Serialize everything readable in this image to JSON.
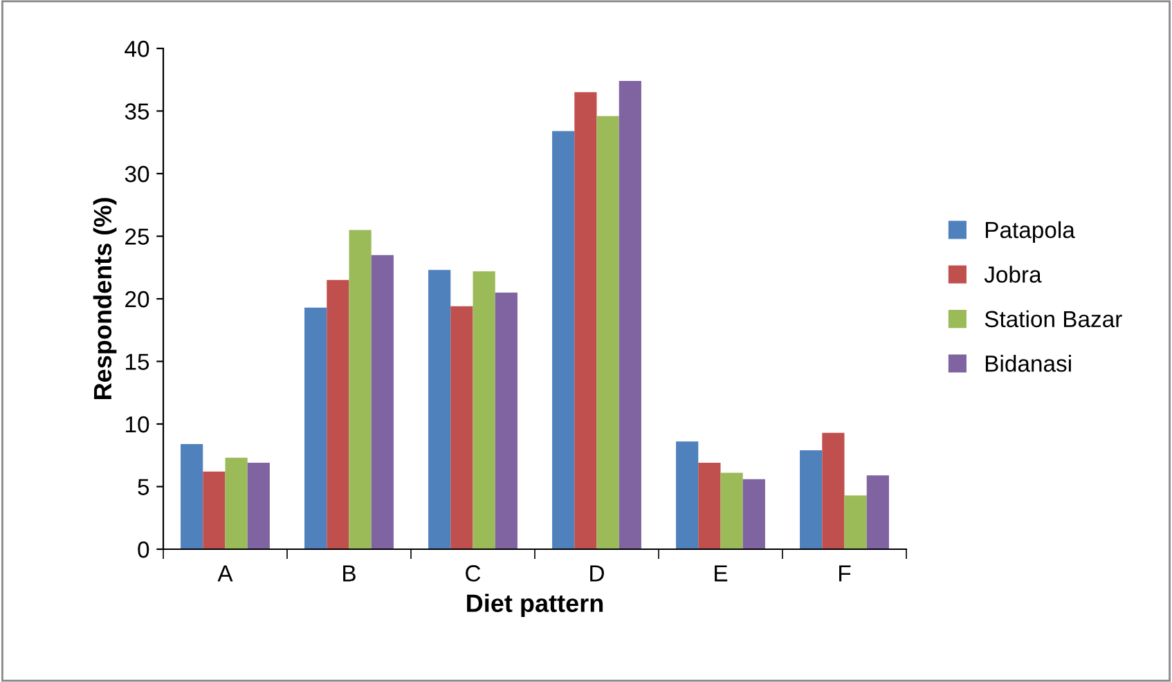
{
  "chart_data": {
    "type": "bar",
    "xlabel": "Diet pattern",
    "ylabel": "Respondents (%)",
    "categories": [
      "A",
      "B",
      "C",
      "D",
      "E",
      "F"
    ],
    "series": [
      {
        "name": "Patapola",
        "color": "#4f81bd",
        "values": [
          8.4,
          19.3,
          22.3,
          33.4,
          8.6,
          7.9
        ]
      },
      {
        "name": "Jobra",
        "color": "#c0504d",
        "values": [
          6.2,
          21.5,
          19.4,
          36.5,
          6.9,
          9.3
        ]
      },
      {
        "name": "Station Bazar",
        "color": "#9bbb59",
        "values": [
          7.3,
          25.5,
          22.2,
          34.6,
          6.1,
          4.3
        ]
      },
      {
        "name": "Bidanasi",
        "color": "#8064a2",
        "values": [
          6.9,
          23.5,
          20.5,
          37.4,
          5.6,
          5.9
        ]
      }
    ],
    "ylim": [
      0,
      40
    ],
    "yticks": [
      0,
      5,
      10,
      15,
      20,
      25,
      30,
      35,
      40
    ],
    "grid": false,
    "legend": "right"
  }
}
